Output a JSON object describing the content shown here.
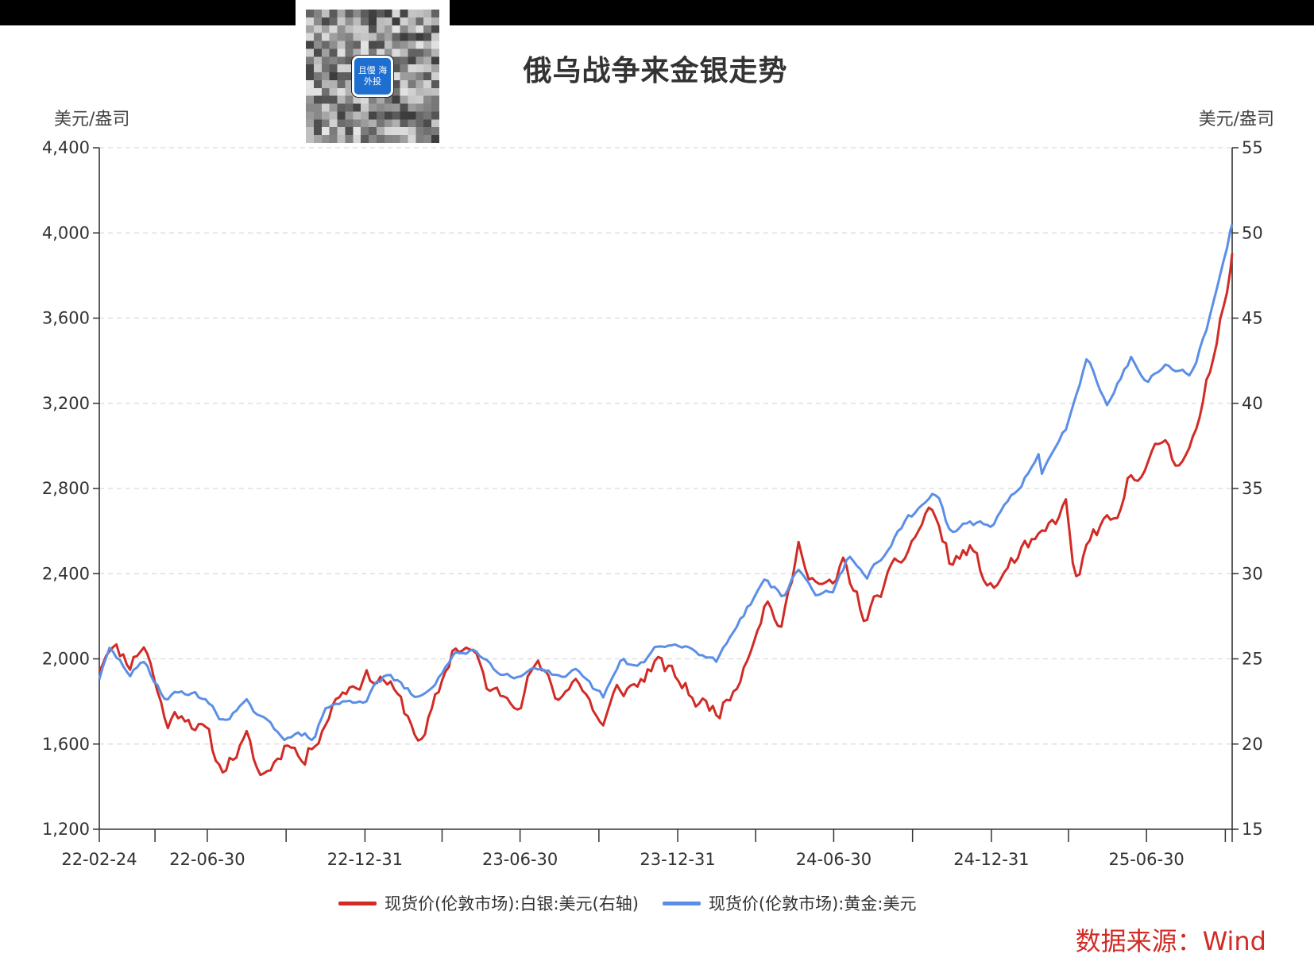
{
  "title": "俄乌战争来金银走势",
  "left_unit": "美元/盎司",
  "right_unit": "美元/盎司",
  "source": "数据来源：Wind",
  "qr_badge": "且慢 海外投",
  "colors": {
    "silver": "#d12b26",
    "gold": "#5b8ee6",
    "axis": "#333333",
    "grid": "#d9d9d9"
  },
  "chart_data": {
    "type": "line",
    "title": "俄乌战争来金银走势",
    "grid": "horizontal dashed",
    "legend_position": "bottom",
    "x_ticks": [
      "22-02-24",
      "22-06-30",
      "22-12-31",
      "23-06-30",
      "23-12-31",
      "24-06-30",
      "24-12-31",
      "25-06-30"
    ],
    "x_range": [
      "2022-02-24",
      "2025-10-08"
    ],
    "y_left": {
      "label": "美元/盎司",
      "range": [
        1200,
        4400
      ],
      "ticks": [
        1200,
        1600,
        2000,
        2400,
        2800,
        3200,
        3600,
        4000,
        4400
      ],
      "tick_labels": [
        "1,200",
        "1,600",
        "2,000",
        "2,400",
        "2,800",
        "3,200",
        "3,600",
        "4,000",
        "4,400"
      ]
    },
    "y_right": {
      "label": "美元/盎司",
      "range": [
        15,
        55
      ],
      "ticks": [
        15,
        20,
        25,
        30,
        35,
        40,
        45,
        50,
        55
      ],
      "tick_labels": [
        "15",
        "20",
        "25",
        "30",
        "35",
        "40",
        "45",
        "50",
        "55"
      ]
    },
    "series": [
      {
        "name": "现货价(伦敦市场):白银:美元(右轴)",
        "axis": "right",
        "color": "#d12b26",
        "x": [
          "2022-02-24",
          "2022-03-08",
          "2022-04-01",
          "2022-04-18",
          "2022-05-13",
          "2022-06-01",
          "2022-06-30",
          "2022-07-15",
          "2022-08-15",
          "2022-09-01",
          "2022-09-20",
          "2022-10-05",
          "2022-10-20",
          "2022-11-15",
          "2022-12-01",
          "2022-12-31",
          "2023-01-25",
          "2023-02-28",
          "2023-03-08",
          "2023-04-14",
          "2023-05-05",
          "2023-05-26",
          "2023-06-30",
          "2023-07-18",
          "2023-08-15",
          "2023-09-01",
          "2023-10-05",
          "2023-10-20",
          "2023-11-15",
          "2023-12-04",
          "2023-12-31",
          "2024-01-22",
          "2024-02-15",
          "2024-02-28",
          "2024-03-15",
          "2024-04-12",
          "2024-05-01",
          "2024-05-20",
          "2024-06-10",
          "2024-06-30",
          "2024-07-10",
          "2024-08-07",
          "2024-08-29",
          "2024-09-15",
          "2024-10-22",
          "2024-11-14",
          "2024-12-05",
          "2024-12-31",
          "2025-01-30",
          "2025-02-28",
          "2025-03-28",
          "2025-04-08",
          "2025-04-30",
          "2025-05-30",
          "2025-06-10",
          "2025-06-30",
          "2025-07-22",
          "2025-08-01",
          "2025-08-30",
          "2025-09-15",
          "2025-10-08"
        ],
        "values": [
          24.5,
          26.0,
          24.8,
          26.0,
          21.2,
          22.0,
          20.5,
          18.5,
          20.2,
          18.0,
          19.2,
          20.5,
          18.8,
          21.5,
          23.0,
          24.0,
          23.8,
          20.8,
          20.0,
          25.8,
          25.5,
          23.0,
          22.8,
          24.8,
          22.5,
          24.2,
          21.0,
          23.0,
          23.5,
          24.8,
          23.8,
          22.5,
          22.0,
          22.6,
          24.5,
          28.5,
          26.8,
          31.5,
          29.5,
          29.0,
          30.7,
          27.2,
          29.5,
          30.5,
          34.0,
          30.5,
          31.5,
          29.0,
          31.0,
          32.0,
          34.0,
          29.5,
          32.5,
          33.0,
          36.0,
          36.2,
          38.0,
          36.5,
          38.5,
          42.5,
          48.8
        ]
      },
      {
        "name": "现货价(伦敦市场):黄金:美元",
        "axis": "left",
        "color": "#5b8ee6",
        "x": [
          "2022-02-24",
          "2022-03-08",
          "2022-04-01",
          "2022-04-18",
          "2022-05-13",
          "2022-06-01",
          "2022-06-30",
          "2022-07-15",
          "2022-08-15",
          "2022-09-01",
          "2022-09-28",
          "2022-10-20",
          "2022-11-03",
          "2022-11-15",
          "2022-12-01",
          "2022-12-31",
          "2023-01-25",
          "2023-02-28",
          "2023-03-08",
          "2023-04-14",
          "2023-05-05",
          "2023-05-31",
          "2023-06-30",
          "2023-07-18",
          "2023-08-21",
          "2023-09-01",
          "2023-10-05",
          "2023-10-27",
          "2023-11-15",
          "2023-12-04",
          "2023-12-31",
          "2024-01-22",
          "2024-02-14",
          "2024-03-08",
          "2024-04-12",
          "2024-05-01",
          "2024-05-20",
          "2024-06-10",
          "2024-06-30",
          "2024-07-17",
          "2024-08-07",
          "2024-08-30",
          "2024-09-26",
          "2024-10-30",
          "2024-11-14",
          "2024-12-05",
          "2024-12-31",
          "2025-01-30",
          "2025-02-24",
          "2025-02-28",
          "2025-03-28",
          "2025-04-22",
          "2025-05-15",
          "2025-06-13",
          "2025-06-30",
          "2025-07-22",
          "2025-08-20",
          "2025-09-01",
          "2025-09-15",
          "2025-10-08"
        ],
        "values": [
          1910,
          2040,
          1930,
          1980,
          1810,
          1850,
          1810,
          1710,
          1790,
          1715,
          1640,
          1640,
          1630,
          1770,
          1790,
          1810,
          1930,
          1820,
          1815,
          2010,
          2050,
          1960,
          1915,
          1975,
          1890,
          1940,
          1820,
          1990,
          1960,
          2050,
          2060,
          2030,
          1990,
          2160,
          2380,
          2290,
          2420,
          2300,
          2330,
          2470,
          2380,
          2510,
          2660,
          2780,
          2580,
          2650,
          2610,
          2800,
          2950,
          2860,
          3080,
          3430,
          3200,
          3420,
          3300,
          3400,
          3330,
          3460,
          3650,
          4040
        ]
      }
    ]
  }
}
